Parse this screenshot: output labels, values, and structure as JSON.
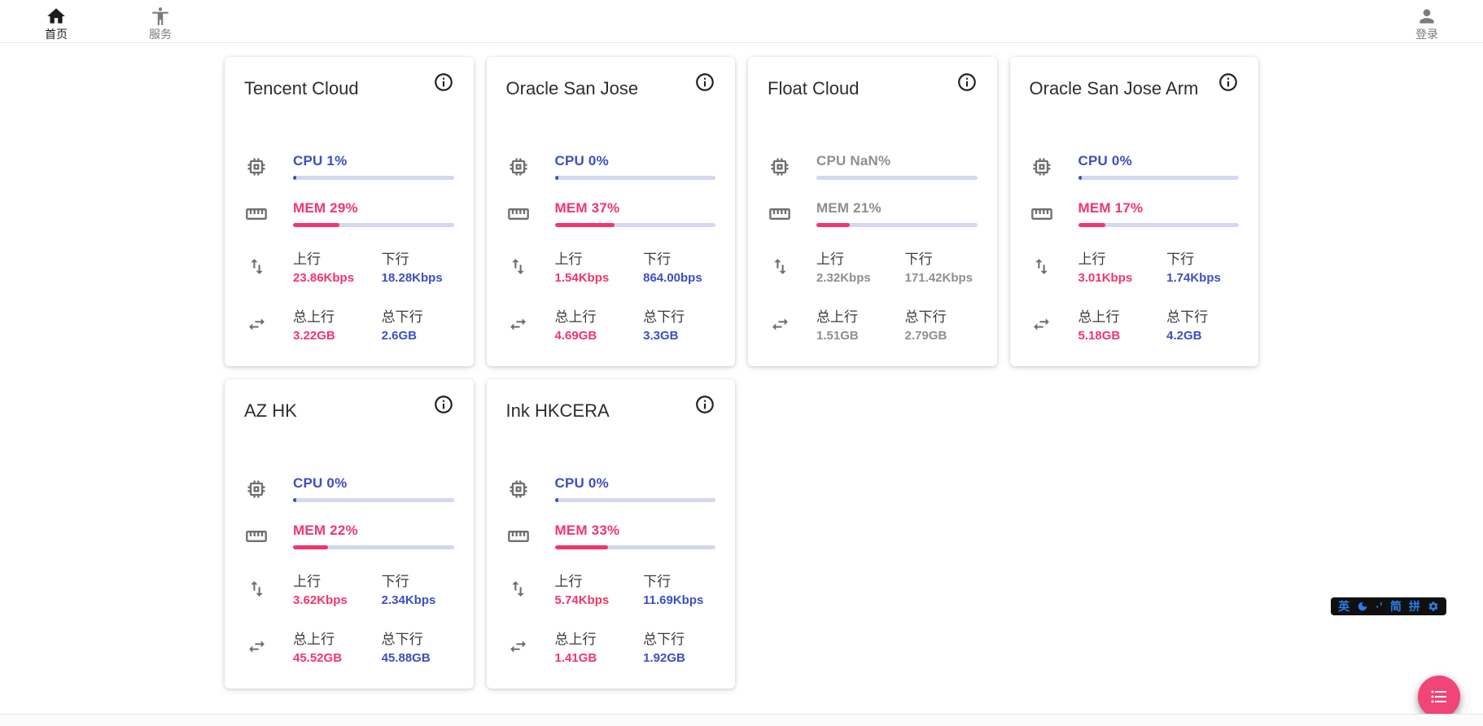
{
  "nav": {
    "home": {
      "label": "首页"
    },
    "services": {
      "label": "服务"
    },
    "login": {
      "label": "登录"
    }
  },
  "labels": {
    "up": "上行",
    "down": "下行",
    "total_up": "总上行",
    "total_down": "总下行"
  },
  "theme": {
    "cpu_color": "#3d4fc0",
    "mem_color": "#f1366e",
    "upload_color": "#f1366e",
    "download_color": "#3d4fc0",
    "offline_text_color": "#8f8f8f",
    "bar_track_color": "#d4d7ef",
    "fab_color": "#f14479",
    "ime_accent_color": "#2b7de9"
  },
  "servers": [
    {
      "name": "Tencent Cloud",
      "cpu_label": "CPU 1%",
      "cpu_pct": 1,
      "mem_label": "MEM 29%",
      "mem_pct": 29,
      "offline": false,
      "up": "23.86Kbps",
      "down": "18.28Kbps",
      "total_up": "3.22GB",
      "total_down": "2.6GB"
    },
    {
      "name": "Oracle San Jose",
      "cpu_label": "CPU 0%",
      "cpu_pct": 0,
      "mem_label": "MEM 37%",
      "mem_pct": 37,
      "offline": false,
      "up": "1.54Kbps",
      "down": "864.00bps",
      "total_up": "4.69GB",
      "total_down": "3.3GB"
    },
    {
      "name": "Float Cloud",
      "cpu_label": "CPU NaN%",
      "cpu_pct": null,
      "mem_label": "MEM 21%",
      "mem_pct": 21,
      "offline": true,
      "up": "2.32Kbps",
      "down": "171.42Kbps",
      "total_up": "1.51GB",
      "total_down": "2.79GB"
    },
    {
      "name": "Oracle San Jose Arm",
      "cpu_label": "CPU 0%",
      "cpu_pct": 0,
      "mem_label": "MEM 17%",
      "mem_pct": 17,
      "offline": false,
      "up": "3.01Kbps",
      "down": "1.74Kbps",
      "total_up": "5.18GB",
      "total_down": "4.2GB"
    },
    {
      "name": "AZ HK",
      "cpu_label": "CPU 0%",
      "cpu_pct": 0,
      "mem_label": "MEM 22%",
      "mem_pct": 22,
      "offline": false,
      "up": "3.62Kbps",
      "down": "2.34Kbps",
      "total_up": "45.52GB",
      "total_down": "45.88GB"
    },
    {
      "name": "Ink HKCERA",
      "cpu_label": "CPU 0%",
      "cpu_pct": 0,
      "mem_label": "MEM 33%",
      "mem_pct": 33,
      "offline": false,
      "up": "5.74Kbps",
      "down": "11.69Kbps",
      "total_up": "1.41GB",
      "total_down": "1.92GB"
    }
  ],
  "ime_bar": {
    "english_label": "英",
    "punct_label": "·ʼ",
    "simplified_label": "简",
    "pinyin_label": "拼",
    "moon_icon": "moon-icon",
    "gear_icon": "gear-icon"
  },
  "fab": {
    "icon": "list-icon"
  }
}
